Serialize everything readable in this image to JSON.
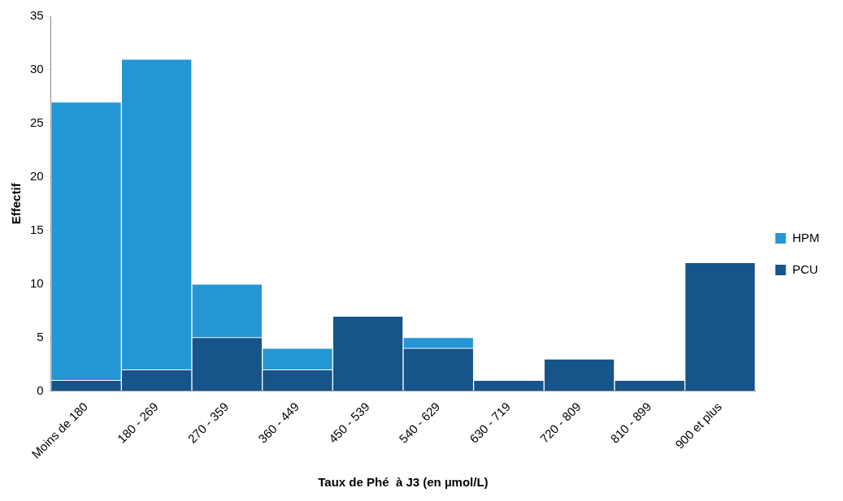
{
  "chart_data": {
    "type": "bar",
    "stacked": true,
    "xlabel": "Taux de Phé  à J3 (en µmol/L)",
    "ylabel": "Effectif",
    "categories": [
      "Moins de 180",
      "180 - 269",
      "270 - 359",
      "360 - 449",
      "450 - 539",
      "540 - 629",
      "630 - 719",
      "720 - 809",
      "810 - 899",
      "900 et plus"
    ],
    "series": [
      {
        "name": "PCU",
        "color": "#16548a",
        "values": [
          1,
          2,
          5,
          2,
          7,
          4,
          1,
          3,
          1,
          12
        ]
      },
      {
        "name": "HPM",
        "color": "#2596d4",
        "values": [
          26,
          29,
          5,
          2,
          0,
          1,
          0,
          0,
          0,
          0
        ]
      }
    ],
    "ylim": [
      0,
      35
    ],
    "yticks": [
      0,
      5,
      10,
      15,
      20,
      25,
      30,
      35
    ],
    "grid": false,
    "legend": "right"
  }
}
